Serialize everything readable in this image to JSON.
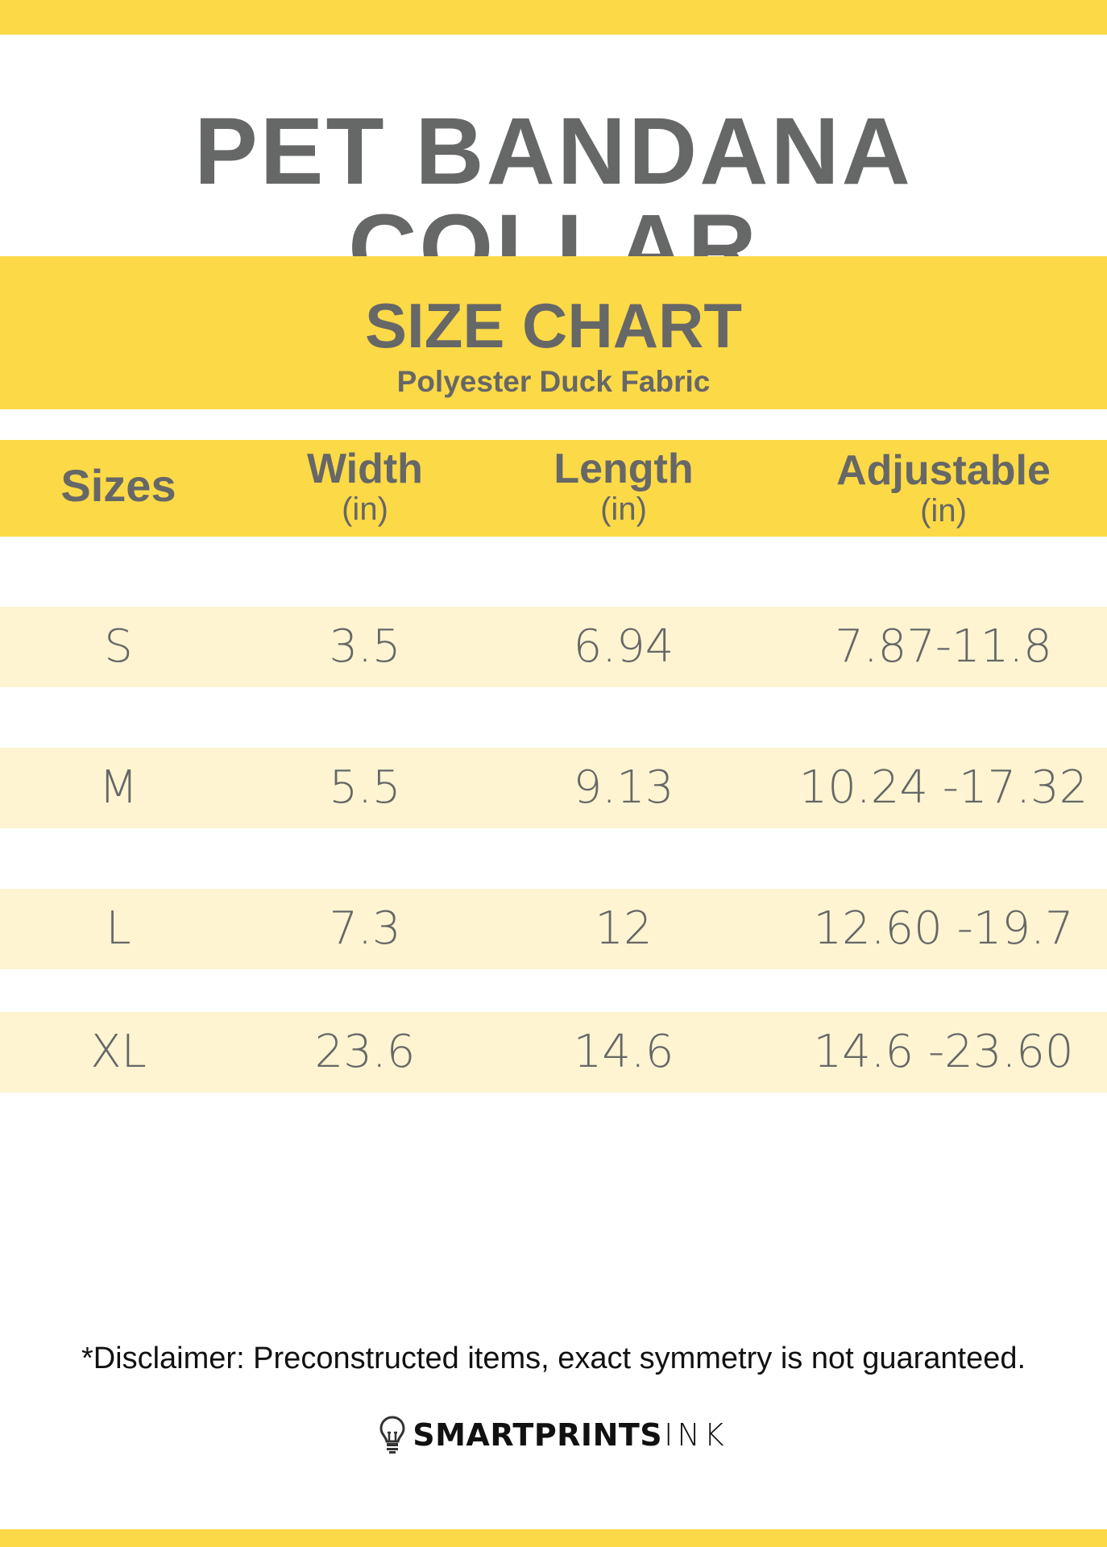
{
  "title": "PET BANDANA COLLAR",
  "band": {
    "heading": "SIZE CHART",
    "subheading": "Polyester Duck Fabric"
  },
  "table": {
    "headers": [
      {
        "label": "Sizes",
        "unit": ""
      },
      {
        "label": "Width",
        "unit": "(in)"
      },
      {
        "label": "Length",
        "unit": "(in)"
      },
      {
        "label": "Adjustable",
        "unit": "(in)"
      }
    ],
    "rows": [
      [
        "S",
        "3.5",
        "6.94",
        "7.87-11.8"
      ],
      [
        "M",
        "5.5",
        "9.13",
        "10.24 -17.32"
      ],
      [
        "L",
        "7.3",
        "12",
        "12.60 -19.7"
      ],
      [
        "XL",
        "23.6",
        "14.6",
        "14.6 -23.60"
      ]
    ]
  },
  "disclaimer": "*Disclaimer: Preconstructed items, exact symmetry is not guaranteed.",
  "logo": {
    "bold": "SMARTPRINTS",
    "light": "INK",
    "icon": "lightbulb-icon"
  },
  "colors": {
    "accent": "#fcd947",
    "row": "#fef4d1",
    "text": "#666767"
  }
}
